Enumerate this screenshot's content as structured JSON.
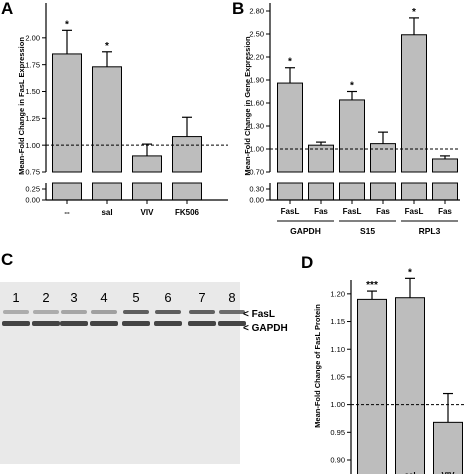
{
  "panels": {
    "A": {
      "letter": "A",
      "type": "bar",
      "ylabel": "Mean-Fold Change in FasL Expression",
      "categories": [
        "--",
        "sal",
        "VIV",
        "FK506"
      ],
      "values": [
        1.85,
        1.73,
        0.9,
        1.08
      ],
      "errors": [
        0.22,
        0.14,
        0.11,
        0.18
      ],
      "significance": [
        "*",
        "*",
        "",
        ""
      ],
      "yticks_upper": [
        "2.00",
        "1.75",
        "1.50",
        "1.25",
        "1.00",
        "0.75"
      ],
      "yticks_lower": [
        "0.25",
        "0.00"
      ],
      "ylim": [
        0.75,
        2.25
      ],
      "reference_line": 1.0
    },
    "B": {
      "letter": "B",
      "type": "bar",
      "ylabel": "Mean-Fold Change in Gene Expression",
      "categories": [
        "FasL",
        "Fas",
        "FasL",
        "Fas",
        "FasL",
        "Fas"
      ],
      "groups": [
        "GAPDH",
        "S15",
        "RPL3"
      ],
      "values": [
        1.86,
        1.05,
        1.64,
        1.07,
        2.49,
        0.87
      ],
      "errors": [
        0.2,
        0.04,
        0.11,
        0.15,
        0.22,
        0.04
      ],
      "significance": [
        "*",
        "",
        "*",
        "",
        "*",
        ""
      ],
      "yticks_upper": [
        "2.80",
        "2.50",
        "2.20",
        "1.90",
        "1.60",
        "1.30",
        "1.00",
        "0.70"
      ],
      "yticks_lower": [
        "0.30",
        "0.00"
      ],
      "ylim": [
        0.7,
        2.8
      ],
      "reference_line": 1.0
    },
    "C": {
      "letter": "C",
      "lanes": [
        "1",
        "2",
        "3",
        "4",
        "5",
        "6",
        "7",
        "8"
      ],
      "bands": [
        "< FasL",
        "< GAPDH"
      ]
    },
    "D": {
      "letter": "D",
      "type": "bar",
      "ylabel": "Mean-Fold Change of FasL Protein",
      "categories": [
        "--",
        "sal",
        "VIV"
      ],
      "values": [
        1.19,
        1.193,
        0.968
      ],
      "errors": [
        0.015,
        0.035,
        0.052
      ],
      "significance": [
        "***",
        "*",
        ""
      ],
      "yticks": [
        "1.20",
        "1.15",
        "1.10",
        "1.05",
        "1.00",
        "0.95",
        "0.90"
      ],
      "ylim": [
        0.9,
        1.225
      ],
      "reference_line": 1.0
    }
  },
  "colors": {
    "bar": "#bdbdbd",
    "stroke": "#000000",
    "blot_bg": "#e9e9e9",
    "band_dark": "#3b3b3b"
  }
}
